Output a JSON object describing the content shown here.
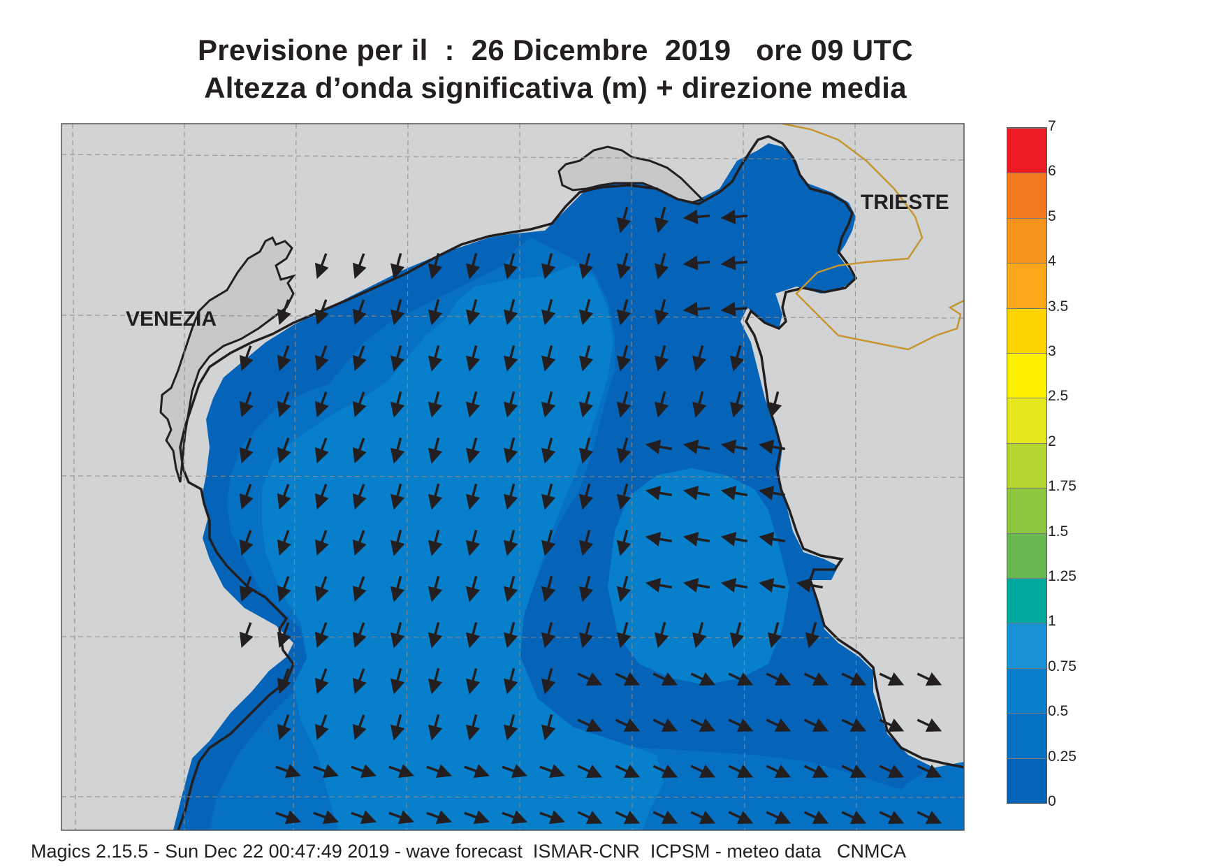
{
  "title": {
    "line1": "Previsione per il  :  26 Dicembre  2019   ore 09 UTC",
    "line2": "Altezza d’onda significativa (m) + direzione media"
  },
  "labels": {
    "venezia": "VENEZIA",
    "trieste": "TRIESTE"
  },
  "colorbar": {
    "levels": [
      {
        "value": "0",
        "color": "#0563b8"
      },
      {
        "value": "0.25",
        "color": "#0670c2"
      },
      {
        "value": "0.5",
        "color": "#087fcb"
      },
      {
        "value": "0.75",
        "color": "#1993d6"
      },
      {
        "value": "1",
        "color": "#00a99d"
      },
      {
        "value": "1.25",
        "color": "#67b94f"
      },
      {
        "value": "1.5",
        "color": "#8ec640"
      },
      {
        "value": "1.75",
        "color": "#b5d531"
      },
      {
        "value": "2",
        "color": "#e4e61e"
      },
      {
        "value": "2.5",
        "color": "#fff200"
      },
      {
        "value": "3",
        "color": "#ffd400"
      },
      {
        "value": "3.5",
        "color": "#faa819"
      },
      {
        "value": "4",
        "color": "#f7941d"
      },
      {
        "value": "5",
        "color": "#f47a20"
      },
      {
        "value": "6",
        "color": "#ed1c24"
      },
      {
        "value": "7",
        "color": "#ec1164"
      }
    ]
  },
  "map_colors": {
    "land": "#d1d3d4",
    "sea_low": "#0563b8",
    "sea_mid": "#0670c2",
    "sea_high": "#087fcb",
    "border": "#c8962e",
    "coast": "#231f20",
    "grid": "#8c8c8c"
  },
  "footer": "Magics 2.15.5 - Sun Dec 22 00:47:49 2019 - wave forecast  ISMAR-CNR  ICPSM - meteo data   CNMCA"
}
